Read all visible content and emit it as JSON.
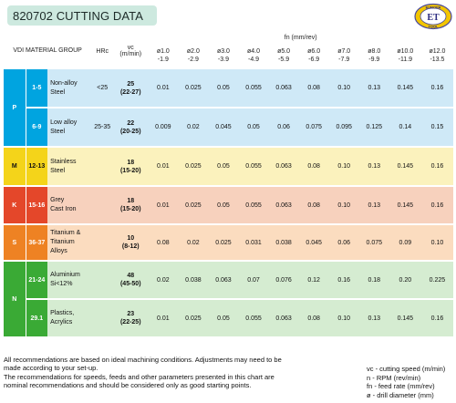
{
  "title": "820702 CUTTING DATA",
  "logo": {
    "top": "EUROPA",
    "mid": "ET",
    "bottom": "TOOL"
  },
  "header": {
    "vdi": "VDI MATERIAL GROUP",
    "hrc": "HRc",
    "vc": "vc",
    "vc_unit": "(m/min)",
    "fn": "fn (mm/rev)",
    "diameters": [
      {
        "d": "ø1.0",
        "r": "-1.9"
      },
      {
        "d": "ø2.0",
        "r": "-2.9"
      },
      {
        "d": "ø3.0",
        "r": "-3.9"
      },
      {
        "d": "ø4.0",
        "r": "-4.9"
      },
      {
        "d": "ø5.0",
        "r": "-5.9"
      },
      {
        "d": "ø6.0",
        "r": "-6.9"
      },
      {
        "d": "ø7.0",
        "r": "-7.9"
      },
      {
        "d": "ø8.0",
        "r": "-9.9"
      },
      {
        "d": "ø10.0",
        "r": "-11.9"
      },
      {
        "d": "ø12.0",
        "r": "-13.5"
      }
    ]
  },
  "colors": {
    "P_dark": "#00a4e0",
    "P_light": "#cfe9f7",
    "M_dark": "#f4d41a",
    "M_light": "#fbf2bd",
    "K_dark": "#e4472a",
    "K_light": "#f7d1bd",
    "S_dark": "#ee8223",
    "S_light": "#fbdcbf",
    "N_dark": "#3aaa35",
    "N_light": "#d5ecd1"
  },
  "groups": [
    {
      "letter": "P",
      "rows": [
        {
          "code": "1-5",
          "mat1": "Non-alloy",
          "mat2": "Steel",
          "hrc": "<25",
          "vc": "25",
          "vc_range": "(22-27)",
          "values": [
            "0.01",
            "0.025",
            "0.05",
            "0.055",
            "0.063",
            "0.08",
            "0.10",
            "0.13",
            "0.145",
            "0.16"
          ]
        },
        {
          "code": "6-9",
          "mat1": "Low alloy",
          "mat2": "Steel",
          "hrc": "25-35",
          "vc": "22",
          "vc_range": "(20-25)",
          "values": [
            "0.009",
            "0.02",
            "0.045",
            "0.05",
            "0.06",
            "0.075",
            "0.095",
            "0.125",
            "0.14",
            "0.15"
          ]
        }
      ]
    },
    {
      "letter": "M",
      "rows": [
        {
          "code": "12-13",
          "mat1": "Stainless",
          "mat2": "Steel",
          "hrc": "",
          "vc": "18",
          "vc_range": "(15-20)",
          "values": [
            "0.01",
            "0.025",
            "0.05",
            "0.055",
            "0.063",
            "0.08",
            "0.10",
            "0.13",
            "0.145",
            "0.16"
          ]
        }
      ]
    },
    {
      "letter": "K",
      "rows": [
        {
          "code": "15-16",
          "mat1": "Grey",
          "mat2": "Cast Iron",
          "hrc": "",
          "vc": "18",
          "vc_range": "(15-20)",
          "values": [
            "0.01",
            "0.025",
            "0.05",
            "0.055",
            "0.063",
            "0.08",
            "0.10",
            "0.13",
            "0.145",
            "0.16"
          ]
        }
      ]
    },
    {
      "letter": "S",
      "rows": [
        {
          "code": "36-37",
          "mat1": "Titanium &",
          "mat2": "Titanium",
          "mat3": "Alloys",
          "hrc": "",
          "vc": "10",
          "vc_range": "(8-12)",
          "values": [
            "0.08",
            "0.02",
            "0.025",
            "0.031",
            "0.038",
            "0.045",
            "0.06",
            "0.075",
            "0.09",
            "0.10"
          ]
        }
      ]
    },
    {
      "letter": "N",
      "rows": [
        {
          "code": "21-24",
          "mat1": "Aluminium",
          "mat2": "Si<12%",
          "hrc": "",
          "vc": "48",
          "vc_range": "(45-50)",
          "values": [
            "0.02",
            "0.038",
            "0.063",
            "0.07",
            "0.076",
            "0.12",
            "0.16",
            "0.18",
            "0.20",
            "0.225"
          ]
        },
        {
          "code": "29.1",
          "mat1": "Plastics,",
          "mat2": "Acrylics",
          "hrc": "",
          "vc": "23",
          "vc_range": "(22-25)",
          "values": [
            "0.01",
            "0.025",
            "0.05",
            "0.055",
            "0.063",
            "0.08",
            "0.10",
            "0.13",
            "0.145",
            "0.16"
          ]
        }
      ]
    }
  ],
  "notes": [
    "All recommendations are based on ideal machining conditions. Adjustments may need to be",
    "made according to your set-up.",
    "The recommendations for speeds, feeds and other parameters presented in this chart are",
    "nominal recommendations and should be considered only as good starting points."
  ],
  "legend": [
    "vc - cutting speed (m/min)",
    "n - RPM (rev/min)",
    "fn - feed rate (mm/rev)",
    "ø - drill diameter (mm)"
  ]
}
